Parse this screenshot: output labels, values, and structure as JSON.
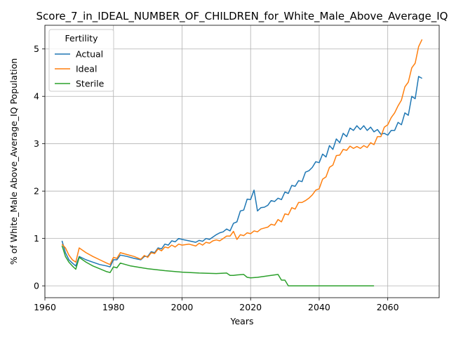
{
  "chart_data": {
    "type": "line",
    "title": "Score_7_in_IDEAL_NUMBER_OF_CHILDREN_for_White_Male_Above_Average_IQ",
    "xlabel": "Years",
    "ylabel": "% of White_Male Above_Average_IQ Population",
    "xlim": [
      1960,
      2075
    ],
    "ylim": [
      -0.25,
      5.5
    ],
    "xticks": [
      1960,
      1980,
      2000,
      2020,
      2040,
      2060
    ],
    "yticks": [
      0,
      1,
      2,
      3,
      4,
      5
    ],
    "grid": true,
    "legend": {
      "title": "Fertility",
      "placement": "top-left"
    },
    "colors": {
      "Actual": "#1f77b4",
      "Ideal": "#ff7f0e",
      "Sterile": "#2ca02c"
    },
    "series": [
      {
        "name": "Actual",
        "x": [
          1965,
          1966,
          1967,
          1968,
          1969,
          1970,
          1972,
          1974,
          1976,
          1978,
          1979,
          1980,
          1981,
          1982,
          1984,
          1986,
          1988,
          1989,
          1990,
          1991,
          1992,
          1993,
          1994,
          1995,
          1996,
          1997,
          1998,
          1999,
          2000,
          2002,
          2004,
          2005,
          2006,
          2007,
          2008,
          2010,
          2011,
          2012,
          2013,
          2014,
          2015,
          2016,
          2017,
          2018,
          2019,
          2020,
          2021,
          2022,
          2023,
          2024,
          2025,
          2026,
          2027,
          2028,
          2029,
          2030,
          2031,
          2032,
          2033,
          2034,
          2035,
          2036,
          2037,
          2038,
          2039,
          2040,
          2041,
          2042,
          2043,
          2044,
          2045,
          2046,
          2047,
          2048,
          2049,
          2050,
          2051,
          2052,
          2053,
          2054,
          2055,
          2056,
          2057,
          2058,
          2059,
          2060,
          2061,
          2062,
          2063,
          2064,
          2065,
          2066,
          2067,
          2068,
          2069,
          2070
        ],
        "y": [
          0.95,
          0.7,
          0.55,
          0.48,
          0.42,
          0.62,
          0.55,
          0.5,
          0.45,
          0.42,
          0.4,
          0.55,
          0.55,
          0.65,
          0.62,
          0.58,
          0.55,
          0.62,
          0.62,
          0.72,
          0.7,
          0.8,
          0.78,
          0.88,
          0.86,
          0.95,
          0.93,
          1.0,
          0.98,
          0.95,
          0.92,
          0.96,
          0.94,
          1.0,
          0.98,
          1.08,
          1.12,
          1.14,
          1.2,
          1.16,
          1.32,
          1.35,
          1.58,
          1.6,
          1.83,
          1.82,
          2.02,
          1.58,
          1.65,
          1.66,
          1.7,
          1.8,
          1.78,
          1.85,
          1.82,
          1.98,
          1.95,
          2.12,
          2.1,
          2.22,
          2.2,
          2.4,
          2.43,
          2.5,
          2.62,
          2.6,
          2.78,
          2.72,
          2.96,
          2.88,
          3.1,
          3.02,
          3.22,
          3.15,
          3.33,
          3.28,
          3.38,
          3.3,
          3.38,
          3.28,
          3.35,
          3.25,
          3.3,
          3.2,
          3.22,
          3.18,
          3.28,
          3.28,
          3.45,
          3.4,
          3.65,
          3.6,
          4.0,
          3.95,
          4.42,
          4.38
        ]
      },
      {
        "name": "Ideal",
        "x": [
          1965,
          1966,
          1967,
          1968,
          1969,
          1970,
          1972,
          1974,
          1976,
          1978,
          1979,
          1980,
          1981,
          1982,
          1984,
          1986,
          1988,
          1989,
          1990,
          1991,
          1992,
          1993,
          1994,
          1995,
          1996,
          1997,
          1998,
          1999,
          2000,
          2002,
          2004,
          2005,
          2006,
          2007,
          2008,
          2009,
          2010,
          2011,
          2012,
          2013,
          2014,
          2015,
          2016,
          2017,
          2018,
          2019,
          2020,
          2021,
          2022,
          2023,
          2024,
          2025,
          2026,
          2027,
          2028,
          2029,
          2030,
          2031,
          2032,
          2033,
          2034,
          2035,
          2036,
          2037,
          2038,
          2039,
          2040,
          2041,
          2042,
          2043,
          2044,
          2045,
          2046,
          2047,
          2048,
          2049,
          2050,
          2051,
          2052,
          2053,
          2054,
          2055,
          2056,
          2057,
          2058,
          2059,
          2060,
          2061,
          2062,
          2063,
          2064,
          2065,
          2066,
          2067,
          2068,
          2069,
          2070
        ],
        "y": [
          0.88,
          0.8,
          0.65,
          0.55,
          0.5,
          0.8,
          0.7,
          0.62,
          0.55,
          0.48,
          0.45,
          0.6,
          0.58,
          0.7,
          0.66,
          0.62,
          0.56,
          0.64,
          0.6,
          0.7,
          0.68,
          0.78,
          0.74,
          0.82,
          0.8,
          0.86,
          0.82,
          0.88,
          0.86,
          0.88,
          0.84,
          0.9,
          0.86,
          0.92,
          0.9,
          0.95,
          0.97,
          0.95,
          1.0,
          1.05,
          1.05,
          1.15,
          0.98,
          1.08,
          1.06,
          1.12,
          1.1,
          1.16,
          1.14,
          1.2,
          1.22,
          1.24,
          1.3,
          1.28,
          1.4,
          1.35,
          1.52,
          1.5,
          1.65,
          1.62,
          1.76,
          1.76,
          1.8,
          1.85,
          1.92,
          2.02,
          2.05,
          2.25,
          2.3,
          2.5,
          2.55,
          2.75,
          2.76,
          2.88,
          2.86,
          2.95,
          2.9,
          2.94,
          2.9,
          2.96,
          2.92,
          3.02,
          2.98,
          3.15,
          3.15,
          3.35,
          3.4,
          3.55,
          3.65,
          3.8,
          3.92,
          4.2,
          4.3,
          4.6,
          4.7,
          5.05,
          5.2
        ]
      },
      {
        "name": "Sterile",
        "x": [
          1965,
          1966,
          1967,
          1968,
          1969,
          1970,
          1972,
          1974,
          1976,
          1978,
          1979,
          1980,
          1981,
          1982,
          1985,
          1990,
          1995,
          2000,
          2005,
          2010,
          2013,
          2014,
          2015,
          2016,
          2018,
          2019,
          2020,
          2022,
          2024,
          2026,
          2028,
          2029,
          2030,
          2031,
          2032,
          2035,
          2040,
          2045,
          2050,
          2055,
          2056
        ],
        "y": [
          0.85,
          0.62,
          0.5,
          0.42,
          0.35,
          0.6,
          0.5,
          0.42,
          0.36,
          0.3,
          0.28,
          0.4,
          0.38,
          0.48,
          0.42,
          0.36,
          0.32,
          0.29,
          0.27,
          0.26,
          0.27,
          0.22,
          0.22,
          0.23,
          0.24,
          0.18,
          0.17,
          0.18,
          0.2,
          0.22,
          0.24,
          0.12,
          0.12,
          0.0,
          0.0,
          0.0,
          0.0,
          0.0,
          0.0,
          0.0,
          0.0
        ]
      }
    ]
  }
}
